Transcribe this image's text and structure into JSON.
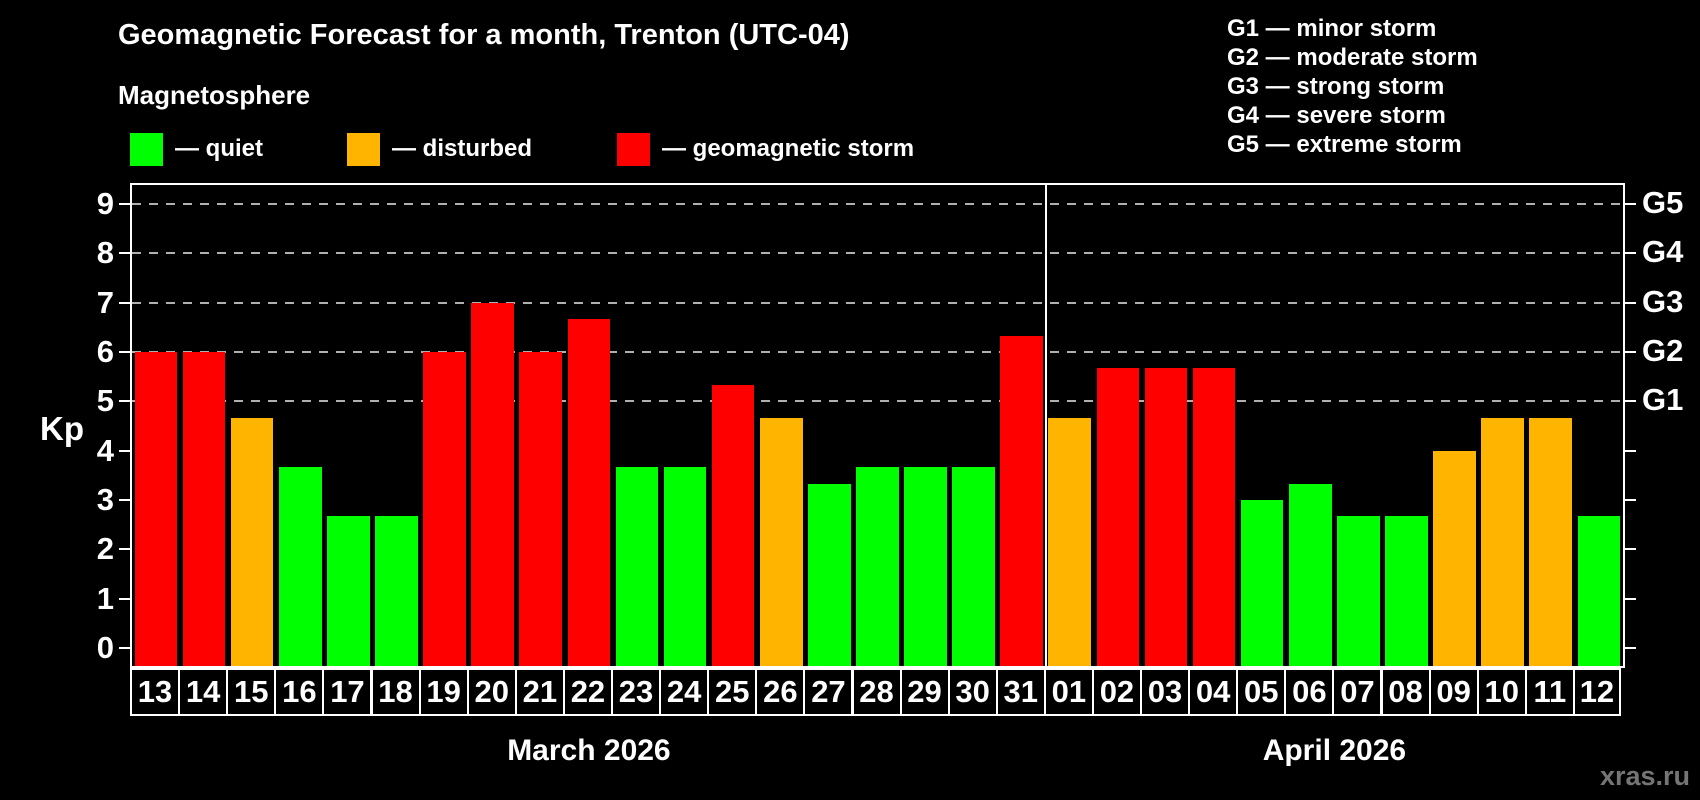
{
  "header": {
    "title": "Geomagnetic Forecast for a month, Trenton (UTC-04)",
    "subtitle": "Magnetosphere"
  },
  "magnetosphere_legend": [
    {
      "status": "quiet",
      "label": "— quiet"
    },
    {
      "status": "disturbed",
      "label": "— disturbed"
    },
    {
      "status": "storm",
      "label": "— geomagnetic storm"
    }
  ],
  "g_scale_legend": [
    "G1 — minor storm",
    "G2 — moderate storm",
    "G3 — strong storm",
    "G4 — severe storm",
    "G5 — extreme storm"
  ],
  "watermark": "xras.ru",
  "chart_data": {
    "type": "bar",
    "title": "Geomagnetic Forecast for a month, Trenton (UTC-04)",
    "ylabel": "Kp",
    "ylim": [
      0,
      9
    ],
    "y_ticks": [
      0,
      1,
      2,
      3,
      4,
      5,
      6,
      7,
      8,
      9
    ],
    "dashed_gridlines_at": [
      5,
      6,
      7,
      8,
      9
    ],
    "right_axis_labels": {
      "5": "G1",
      "6": "G2",
      "7": "G3",
      "8": "G4",
      "9": "G5"
    },
    "palette": {
      "quiet": "#00ff00",
      "disturbed": "#ffb400",
      "storm": "#ff0000"
    },
    "legend_position": "top-left",
    "grid": "dashed horizontal at storm levels only",
    "groups": [
      {
        "label": "March 2026"
      },
      {
        "label": "April 2026"
      }
    ],
    "bars": [
      {
        "group": 0,
        "day": "13",
        "kp": 6.0,
        "status": "storm"
      },
      {
        "group": 0,
        "day": "14",
        "kp": 6.0,
        "status": "storm"
      },
      {
        "group": 0,
        "day": "15",
        "kp": 4.67,
        "status": "disturbed"
      },
      {
        "group": 0,
        "day": "16",
        "kp": 3.67,
        "status": "quiet"
      },
      {
        "group": 0,
        "day": "17",
        "kp": 2.67,
        "status": "quiet"
      },
      {
        "group": 0,
        "day": "18",
        "kp": 2.67,
        "status": "quiet"
      },
      {
        "group": 0,
        "day": "19",
        "kp": 6.0,
        "status": "storm"
      },
      {
        "group": 0,
        "day": "20",
        "kp": 7.0,
        "status": "storm"
      },
      {
        "group": 0,
        "day": "21",
        "kp": 6.0,
        "status": "storm"
      },
      {
        "group": 0,
        "day": "22",
        "kp": 6.67,
        "status": "storm"
      },
      {
        "group": 0,
        "day": "23",
        "kp": 3.67,
        "status": "quiet"
      },
      {
        "group": 0,
        "day": "24",
        "kp": 3.67,
        "status": "quiet"
      },
      {
        "group": 0,
        "day": "25",
        "kp": 5.33,
        "status": "storm"
      },
      {
        "group": 0,
        "day": "26",
        "kp": 4.67,
        "status": "disturbed"
      },
      {
        "group": 0,
        "day": "27",
        "kp": 3.33,
        "status": "quiet"
      },
      {
        "group": 0,
        "day": "28",
        "kp": 3.67,
        "status": "quiet"
      },
      {
        "group": 0,
        "day": "29",
        "kp": 3.67,
        "status": "quiet"
      },
      {
        "group": 0,
        "day": "30",
        "kp": 3.67,
        "status": "quiet"
      },
      {
        "group": 0,
        "day": "31",
        "kp": 6.33,
        "status": "storm"
      },
      {
        "group": 1,
        "day": "01",
        "kp": 4.67,
        "status": "disturbed"
      },
      {
        "group": 1,
        "day": "02",
        "kp": 5.67,
        "status": "storm"
      },
      {
        "group": 1,
        "day": "03",
        "kp": 5.67,
        "status": "storm"
      },
      {
        "group": 1,
        "day": "04",
        "kp": 5.67,
        "status": "storm"
      },
      {
        "group": 1,
        "day": "05",
        "kp": 3.0,
        "status": "quiet"
      },
      {
        "group": 1,
        "day": "06",
        "kp": 3.33,
        "status": "quiet"
      },
      {
        "group": 1,
        "day": "07",
        "kp": 2.67,
        "status": "quiet"
      },
      {
        "group": 1,
        "day": "08",
        "kp": 2.67,
        "status": "quiet"
      },
      {
        "group": 1,
        "day": "09",
        "kp": 4.0,
        "status": "disturbed"
      },
      {
        "group": 1,
        "day": "10",
        "kp": 4.67,
        "status": "disturbed"
      },
      {
        "group": 1,
        "day": "11",
        "kp": 4.67,
        "status": "disturbed"
      },
      {
        "group": 1,
        "day": "12",
        "kp": 2.67,
        "status": "quiet"
      }
    ]
  }
}
